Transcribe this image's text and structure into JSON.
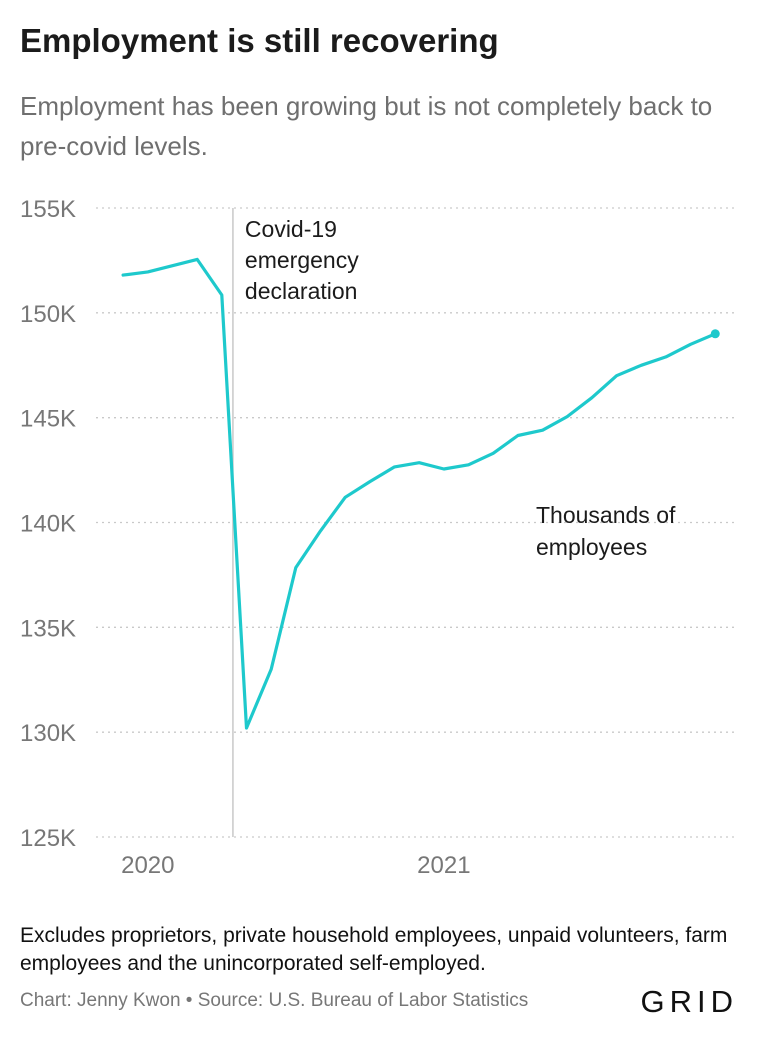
{
  "header": {
    "title": "Employment is still recovering",
    "subtitle": "Employment has been growing but is not completely back to pre-covid levels."
  },
  "footer": {
    "note": "Excludes proprietors, private household employees, unpaid volunteers, farm employees and the unincorporated self-employed.",
    "source": "Chart: Jenny Kwon • Source: U.S. Bureau of Labor Statistics",
    "brand": "GRID"
  },
  "colors": {
    "line": "#1ec9cc",
    "grid": "#c9c9c9",
    "axis_text": "#777777",
    "annotation_line": "#c8c8c8"
  },
  "chart_data": {
    "type": "line",
    "title": "Employment is still recovering",
    "ylabel": "Thousands of employees",
    "xlabel": "",
    "ylim": [
      125000,
      155000
    ],
    "yticks": [
      125000,
      130000,
      135000,
      140000,
      145000,
      150000,
      155000
    ],
    "ytick_labels": [
      "125K",
      "130K",
      "135K",
      "140K",
      "145K",
      "150K",
      "155K"
    ],
    "xticks": [
      {
        "label": "2020",
        "month": 1
      },
      {
        "label": "2021",
        "month": 13
      }
    ],
    "xlim": [
      -1.1,
      24.8
    ],
    "series": [
      {
        "name": "Thousands of employees",
        "months": [
          0,
          1,
          2,
          3,
          4,
          5,
          6,
          7,
          8,
          9,
          10,
          11,
          12,
          13,
          14,
          15,
          16,
          17,
          18,
          19,
          20,
          21,
          22,
          23,
          24
        ],
        "values": [
          151800,
          151950,
          152250,
          152550,
          150850,
          130200,
          133000,
          137850,
          139600,
          141200,
          141950,
          142650,
          142850,
          142550,
          142750,
          143300,
          144150,
          144400,
          145050,
          145950,
          147000,
          147500,
          147900,
          148500,
          149000
        ]
      }
    ],
    "annotations": [
      {
        "text_lines": [
          "Covid-19",
          "emergency",
          "declaration"
        ],
        "month": 4.45
      },
      {
        "text_lines": [
          "Thousands of",
          "employees"
        ],
        "month": 17.8,
        "value": 140000
      }
    ]
  }
}
